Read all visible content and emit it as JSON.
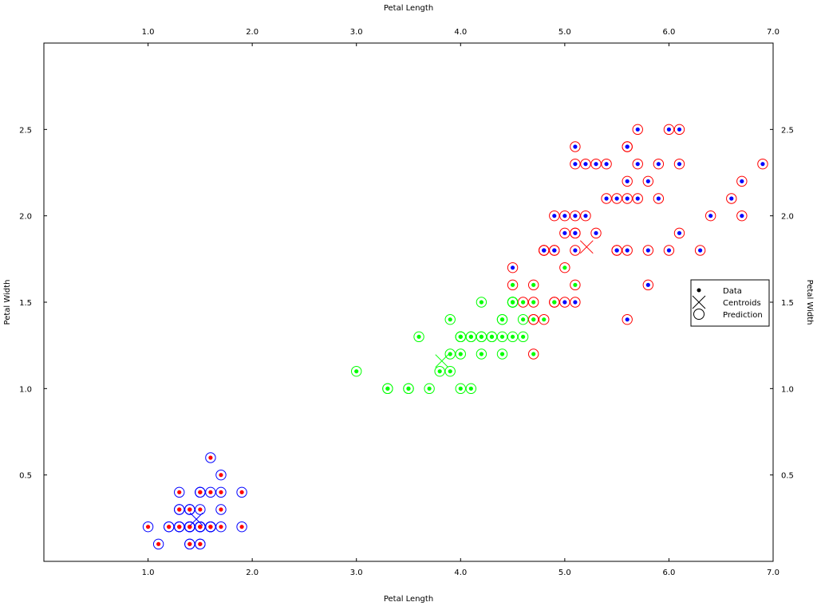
{
  "chart_data": {
    "type": "scatter",
    "xlabel": "Petal Length",
    "ylabel": "Petal Width",
    "xlim": [
      0,
      7
    ],
    "ylim": [
      0,
      3
    ],
    "xticks": [
      "1.0",
      "2.0",
      "3.0",
      "4.0",
      "5.0",
      "6.0",
      "7.0"
    ],
    "xtick_values": [
      1,
      2,
      3,
      4,
      5,
      6,
      7
    ],
    "yticks": [
      "0.5",
      "1.0",
      "1.5",
      "2.0",
      "2.5"
    ],
    "ytick_values": [
      0.5,
      1.0,
      1.5,
      2.0,
      2.5
    ],
    "grid": false,
    "legend": {
      "placement": "right",
      "entries": [
        "Data",
        "Centroids",
        "Prediction"
      ]
    },
    "colors": {
      "red": "#ff0000",
      "blue": "#0000ff",
      "green": "#00ff00"
    },
    "points": [
      [
        1.4,
        0.2,
        "red",
        "blue"
      ],
      [
        1.4,
        0.2,
        "red",
        "blue"
      ],
      [
        1.3,
        0.2,
        "red",
        "blue"
      ],
      [
        1.5,
        0.2,
        "red",
        "blue"
      ],
      [
        1.4,
        0.2,
        "red",
        "blue"
      ],
      [
        1.7,
        0.4,
        "red",
        "blue"
      ],
      [
        1.4,
        0.3,
        "red",
        "blue"
      ],
      [
        1.5,
        0.2,
        "red",
        "blue"
      ],
      [
        1.4,
        0.2,
        "red",
        "blue"
      ],
      [
        1.5,
        0.1,
        "red",
        "blue"
      ],
      [
        1.5,
        0.2,
        "red",
        "blue"
      ],
      [
        1.6,
        0.2,
        "red",
        "blue"
      ],
      [
        1.4,
        0.1,
        "red",
        "blue"
      ],
      [
        1.1,
        0.1,
        "red",
        "blue"
      ],
      [
        1.2,
        0.2,
        "red",
        "blue"
      ],
      [
        1.5,
        0.4,
        "red",
        "blue"
      ],
      [
        1.3,
        0.4,
        "red",
        "blue"
      ],
      [
        1.4,
        0.3,
        "red",
        "blue"
      ],
      [
        1.7,
        0.3,
        "red",
        "blue"
      ],
      [
        1.5,
        0.3,
        "red",
        "blue"
      ],
      [
        1.7,
        0.2,
        "red",
        "blue"
      ],
      [
        1.5,
        0.4,
        "red",
        "blue"
      ],
      [
        1.0,
        0.2,
        "red",
        "blue"
      ],
      [
        1.7,
        0.5,
        "red",
        "blue"
      ],
      [
        1.9,
        0.2,
        "red",
        "blue"
      ],
      [
        1.6,
        0.2,
        "red",
        "blue"
      ],
      [
        1.6,
        0.4,
        "red",
        "blue"
      ],
      [
        1.5,
        0.2,
        "red",
        "blue"
      ],
      [
        1.4,
        0.2,
        "red",
        "blue"
      ],
      [
        1.6,
        0.2,
        "red",
        "blue"
      ],
      [
        1.6,
        0.2,
        "red",
        "blue"
      ],
      [
        1.5,
        0.4,
        "red",
        "blue"
      ],
      [
        1.5,
        0.1,
        "red",
        "blue"
      ],
      [
        1.4,
        0.2,
        "red",
        "blue"
      ],
      [
        1.5,
        0.2,
        "red",
        "blue"
      ],
      [
        1.2,
        0.2,
        "red",
        "blue"
      ],
      [
        1.3,
        0.2,
        "red",
        "blue"
      ],
      [
        1.4,
        0.1,
        "red",
        "blue"
      ],
      [
        1.3,
        0.2,
        "red",
        "blue"
      ],
      [
        1.5,
        0.2,
        "red",
        "blue"
      ],
      [
        1.3,
        0.3,
        "red",
        "blue"
      ],
      [
        1.3,
        0.3,
        "red",
        "blue"
      ],
      [
        1.3,
        0.2,
        "red",
        "blue"
      ],
      [
        1.6,
        0.6,
        "red",
        "blue"
      ],
      [
        1.9,
        0.4,
        "red",
        "blue"
      ],
      [
        1.4,
        0.3,
        "red",
        "blue"
      ],
      [
        1.6,
        0.2,
        "red",
        "blue"
      ],
      [
        1.4,
        0.2,
        "red",
        "blue"
      ],
      [
        1.5,
        0.2,
        "red",
        "blue"
      ],
      [
        1.4,
        0.2,
        "red",
        "blue"
      ],
      [
        4.7,
        1.4,
        "green",
        "red"
      ],
      [
        4.5,
        1.5,
        "green",
        "green"
      ],
      [
        4.9,
        1.5,
        "green",
        "red"
      ],
      [
        4.0,
        1.3,
        "green",
        "green"
      ],
      [
        4.6,
        1.5,
        "green",
        "red"
      ],
      [
        4.5,
        1.3,
        "green",
        "green"
      ],
      [
        4.7,
        1.6,
        "green",
        "red"
      ],
      [
        3.3,
        1.0,
        "green",
        "green"
      ],
      [
        4.6,
        1.3,
        "green",
        "green"
      ],
      [
        3.9,
        1.4,
        "green",
        "green"
      ],
      [
        3.5,
        1.0,
        "green",
        "green"
      ],
      [
        4.2,
        1.5,
        "green",
        "green"
      ],
      [
        4.0,
        1.0,
        "green",
        "green"
      ],
      [
        4.7,
        1.4,
        "green",
        "red"
      ],
      [
        3.6,
        1.3,
        "green",
        "green"
      ],
      [
        4.4,
        1.4,
        "green",
        "green"
      ],
      [
        4.5,
        1.5,
        "green",
        "green"
      ],
      [
        4.1,
        1.0,
        "green",
        "green"
      ],
      [
        4.5,
        1.5,
        "green",
        "green"
      ],
      [
        3.9,
        1.1,
        "green",
        "green"
      ],
      [
        4.8,
        1.8,
        "blue",
        "red"
      ],
      [
        4.0,
        1.3,
        "green",
        "green"
      ],
      [
        4.9,
        1.5,
        "green",
        "red"
      ],
      [
        4.7,
        1.2,
        "green",
        "red"
      ],
      [
        4.3,
        1.3,
        "green",
        "green"
      ],
      [
        4.4,
        1.4,
        "green",
        "green"
      ],
      [
        4.8,
        1.4,
        "green",
        "red"
      ],
      [
        5.0,
        1.7,
        "green",
        "red"
      ],
      [
        4.5,
        1.5,
        "green",
        "green"
      ],
      [
        3.5,
        1.0,
        "green",
        "green"
      ],
      [
        3.8,
        1.1,
        "green",
        "green"
      ],
      [
        3.7,
        1.0,
        "green",
        "green"
      ],
      [
        3.9,
        1.2,
        "green",
        "green"
      ],
      [
        5.1,
        1.6,
        "green",
        "red"
      ],
      [
        4.5,
        1.5,
        "green",
        "green"
      ],
      [
        4.5,
        1.6,
        "green",
        "red"
      ],
      [
        4.7,
        1.5,
        "green",
        "red"
      ],
      [
        4.4,
        1.3,
        "green",
        "green"
      ],
      [
        4.1,
        1.3,
        "green",
        "green"
      ],
      [
        4.0,
        1.3,
        "green",
        "green"
      ],
      [
        4.4,
        1.2,
        "green",
        "green"
      ],
      [
        4.6,
        1.4,
        "green",
        "green"
      ],
      [
        4.0,
        1.2,
        "green",
        "green"
      ],
      [
        3.3,
        1.0,
        "green",
        "green"
      ],
      [
        4.2,
        1.3,
        "green",
        "green"
      ],
      [
        4.2,
        1.2,
        "green",
        "green"
      ],
      [
        4.2,
        1.3,
        "green",
        "green"
      ],
      [
        4.3,
        1.3,
        "green",
        "green"
      ],
      [
        3.0,
        1.1,
        "green",
        "green"
      ],
      [
        4.1,
        1.3,
        "green",
        "green"
      ],
      [
        6.0,
        2.5,
        "blue",
        "red"
      ],
      [
        5.1,
        1.9,
        "blue",
        "red"
      ],
      [
        5.9,
        2.1,
        "blue",
        "red"
      ],
      [
        5.6,
        1.8,
        "blue",
        "red"
      ],
      [
        5.8,
        2.2,
        "blue",
        "red"
      ],
      [
        6.6,
        2.1,
        "blue",
        "red"
      ],
      [
        4.5,
        1.7,
        "blue",
        "red"
      ],
      [
        6.3,
        1.8,
        "blue",
        "red"
      ],
      [
        5.8,
        1.8,
        "blue",
        "red"
      ],
      [
        6.1,
        2.5,
        "blue",
        "red"
      ],
      [
        5.1,
        2.0,
        "blue",
        "red"
      ],
      [
        5.3,
        1.9,
        "blue",
        "red"
      ],
      [
        5.5,
        2.1,
        "blue",
        "red"
      ],
      [
        5.0,
        2.0,
        "blue",
        "red"
      ],
      [
        5.1,
        2.4,
        "blue",
        "red"
      ],
      [
        5.3,
        2.3,
        "blue",
        "red"
      ],
      [
        5.5,
        1.8,
        "blue",
        "red"
      ],
      [
        6.7,
        2.2,
        "blue",
        "red"
      ],
      [
        6.9,
        2.3,
        "blue",
        "red"
      ],
      [
        5.0,
        1.5,
        "blue",
        "red"
      ],
      [
        5.7,
        2.3,
        "blue",
        "red"
      ],
      [
        4.9,
        2.0,
        "blue",
        "red"
      ],
      [
        6.7,
        2.0,
        "blue",
        "red"
      ],
      [
        4.9,
        1.8,
        "blue",
        "red"
      ],
      [
        5.7,
        2.1,
        "blue",
        "red"
      ],
      [
        6.0,
        1.8,
        "blue",
        "red"
      ],
      [
        4.8,
        1.8,
        "blue",
        "red"
      ],
      [
        4.9,
        1.8,
        "blue",
        "red"
      ],
      [
        5.6,
        2.1,
        "blue",
        "red"
      ],
      [
        5.8,
        1.6,
        "blue",
        "red"
      ],
      [
        6.1,
        1.9,
        "blue",
        "red"
      ],
      [
        6.4,
        2.0,
        "blue",
        "red"
      ],
      [
        5.6,
        2.2,
        "blue",
        "red"
      ],
      [
        5.1,
        1.5,
        "blue",
        "red"
      ],
      [
        5.6,
        1.4,
        "blue",
        "red"
      ],
      [
        6.1,
        2.3,
        "blue",
        "red"
      ],
      [
        5.6,
        2.4,
        "blue",
        "red"
      ],
      [
        5.5,
        1.8,
        "blue",
        "red"
      ],
      [
        4.8,
        1.8,
        "blue",
        "red"
      ],
      [
        5.4,
        2.1,
        "blue",
        "red"
      ],
      [
        5.6,
        2.4,
        "blue",
        "red"
      ],
      [
        5.1,
        2.3,
        "blue",
        "red"
      ],
      [
        5.1,
        1.9,
        "blue",
        "red"
      ],
      [
        5.9,
        2.3,
        "blue",
        "red"
      ],
      [
        5.7,
        2.5,
        "blue",
        "red"
      ],
      [
        5.2,
        2.3,
        "blue",
        "red"
      ],
      [
        5.0,
        1.9,
        "blue",
        "red"
      ],
      [
        5.2,
        2.0,
        "blue",
        "red"
      ],
      [
        5.4,
        2.3,
        "blue",
        "red"
      ],
      [
        5.1,
        1.8,
        "blue",
        "red"
      ]
    ],
    "centroids": [
      {
        "x": 1.464,
        "y": 0.244,
        "color": "blue"
      },
      {
        "x": 3.82,
        "y": 1.16,
        "color": "green"
      },
      {
        "x": 5.21,
        "y": 1.82,
        "color": "red"
      }
    ]
  }
}
